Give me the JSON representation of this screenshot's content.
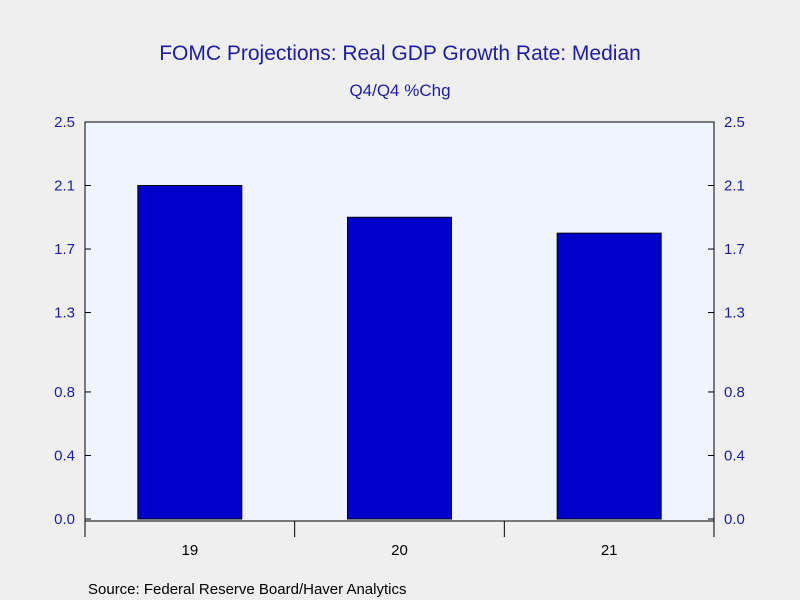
{
  "chart_data": {
    "type": "bar",
    "title": "FOMC Projections: Real GDP Growth Rate: Median",
    "subtitle": "Q4/Q4 %Chg",
    "categories": [
      "19",
      "20",
      "21"
    ],
    "values": [
      2.1,
      1.9,
      1.8
    ],
    "ylim": [
      0.0,
      2.5
    ],
    "yticks": [
      "0.0",
      "0.4",
      "0.8",
      "1.3",
      "1.7",
      "2.1",
      "2.5"
    ],
    "ytick_values": [
      0.0,
      0.4,
      0.8,
      1.3,
      1.7,
      2.1,
      2.5
    ],
    "y_axis_sides": "left-and-right",
    "grid": false,
    "colors": {
      "bar_fill": "#0000cc",
      "bar_stroke": "#000000",
      "plot_background": "#eef5ff",
      "page_background": "#efefef",
      "title_text": "#1c1ca8",
      "tick_text": "#1c1ca8"
    }
  },
  "source": "Source:  Federal Reserve Board/Haver Analytics"
}
